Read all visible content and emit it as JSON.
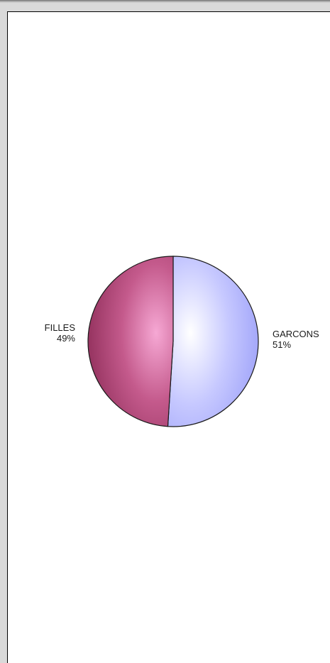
{
  "chart_data": {
    "type": "pie",
    "slices": [
      {
        "label": "GARCONS",
        "percent_label": "51%",
        "value": 51,
        "color": "#aeb0ff"
      },
      {
        "label": "FILLES",
        "percent_label": "49%",
        "value": 49,
        "color": "#a8386e"
      }
    ]
  }
}
